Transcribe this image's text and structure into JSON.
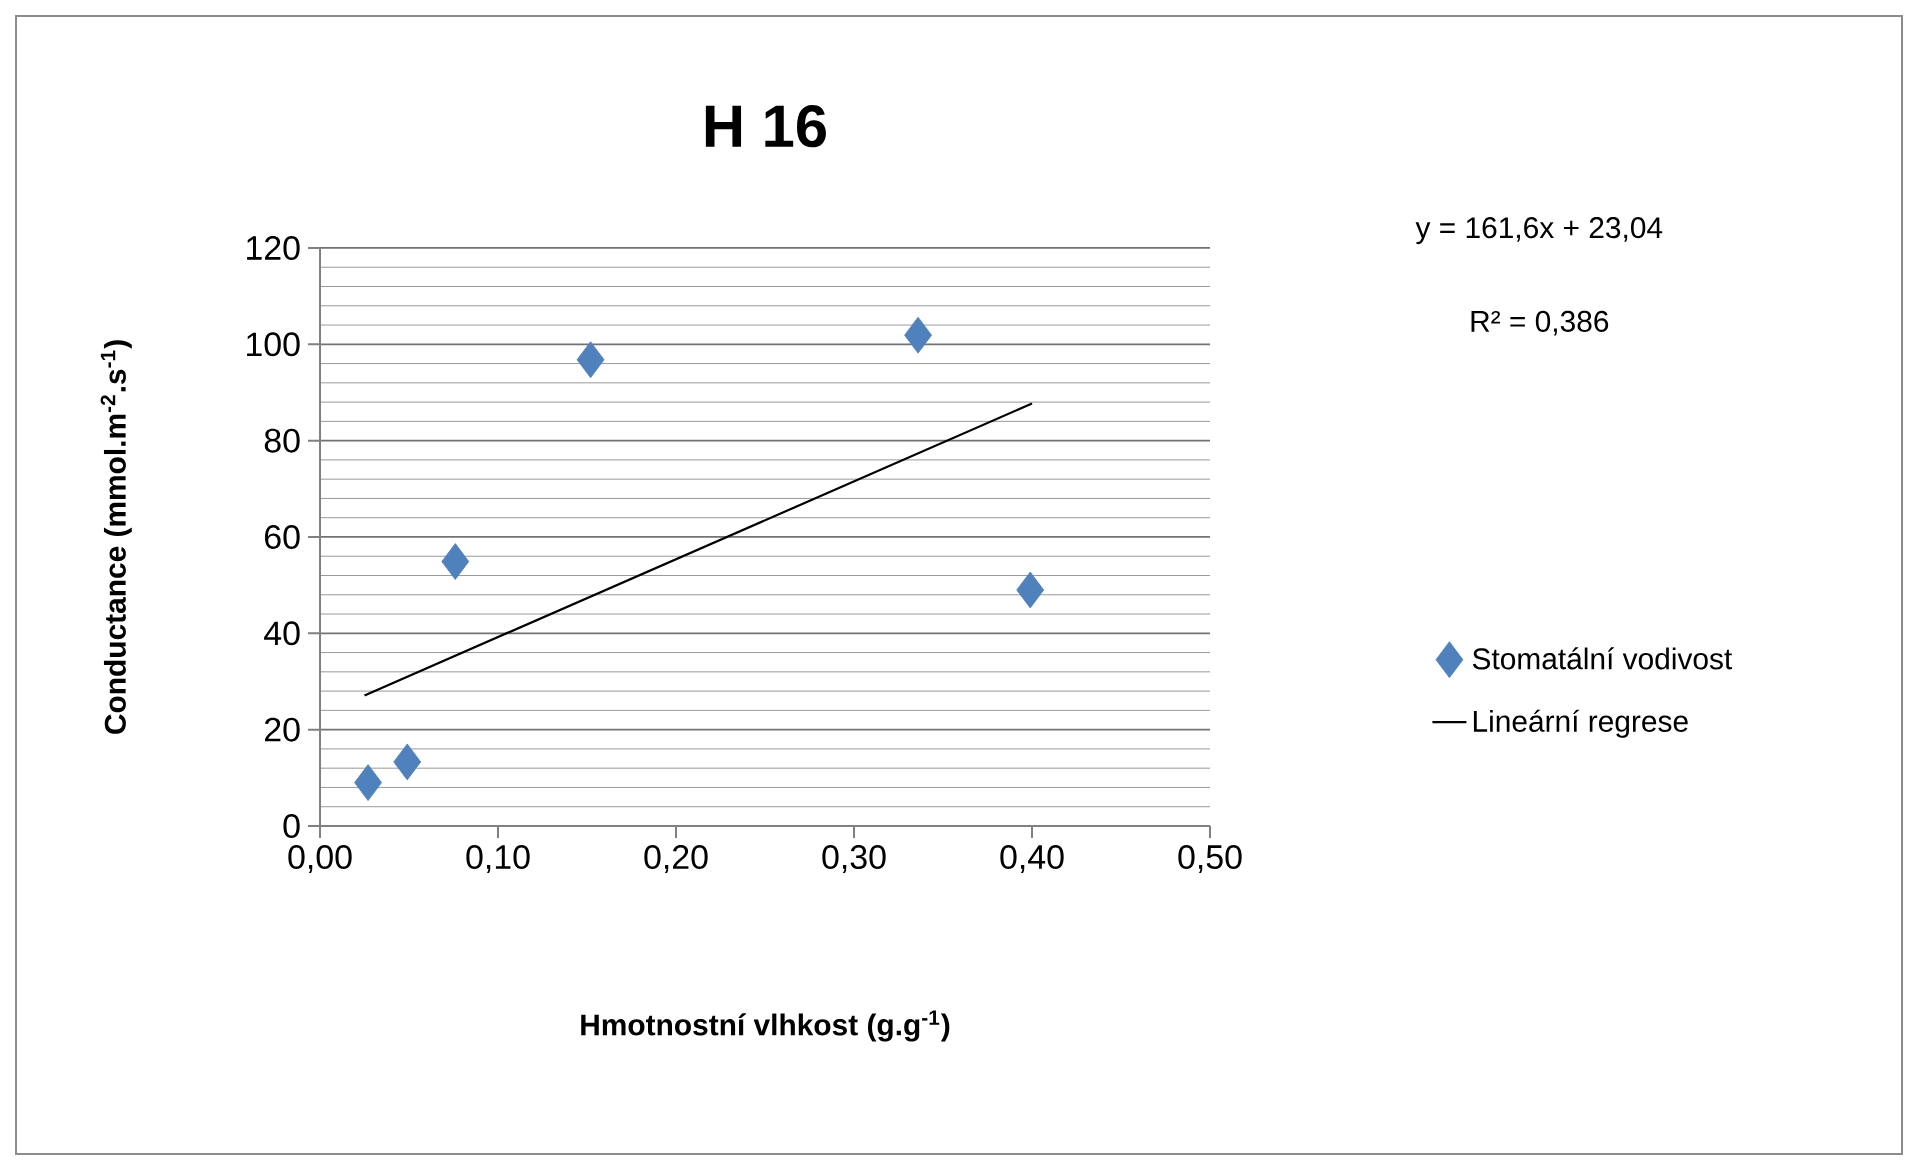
{
  "chart_data": {
    "type": "scatter",
    "title": "H 16",
    "xlabel": "Hmotnostní vlhkost (g.g$^{-1}$)",
    "ylabel": "Conductance (mmol.m$^{-2}$.s$^{-1}$)",
    "annotations": [
      "y = 161,6x + 23,04",
      "R² = 0,386"
    ],
    "series": [
      {
        "name": "Stomatální vodivost",
        "color": "#4f81bd",
        "marker": "diamond",
        "x": [
          0.027,
          0.049,
          0.076,
          0.152,
          0.336,
          0.399
        ],
        "values": [
          9,
          13.3,
          54.9,
          96.8,
          101.9,
          49
        ]
      },
      {
        "name": "Lineární regrese",
        "type": "line",
        "color": "#000000",
        "marker": "none",
        "line_style": "solid",
        "x": [
          0.025,
          0.4
        ],
        "values": [
          27.1,
          87.7
        ]
      }
    ],
    "xlim": [
      0,
      0.5
    ],
    "ylim": [
      0,
      120
    ],
    "xticks": [
      {
        "value": 0,
        "label": "0,00"
      },
      {
        "value": 0.1,
        "label": "0,10"
      },
      {
        "value": 0.2,
        "label": "0,20"
      },
      {
        "value": 0.3,
        "label": "0,30"
      },
      {
        "value": 0.4,
        "label": "0,40"
      },
      {
        "value": 0.5,
        "label": "0,50"
      }
    ],
    "yticks": [
      0,
      20,
      40,
      60,
      80,
      100,
      120
    ],
    "grid": "y",
    "legend": "right"
  }
}
